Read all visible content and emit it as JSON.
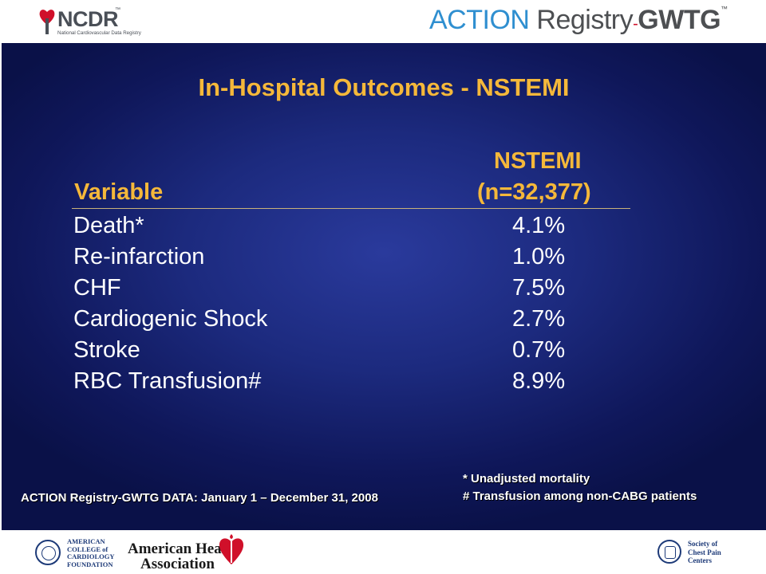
{
  "header": {
    "ncdr_logo": "NCDR",
    "ncdr_tm": "™",
    "ncdr_tagline": "National Cardiovascular Data Registry",
    "action_logo_part1": "ACTION",
    "action_logo_part2": "Registry",
    "action_logo_part3": "GWTG",
    "action_logo_tm": "™"
  },
  "slide": {
    "title": "In-Hospital Outcomes - NSTEMI",
    "table": {
      "col_variable": "Variable",
      "col_nstemi": "NSTEMI",
      "col_n": "(n=32,377)",
      "rows": [
        {
          "variable": "Death*",
          "value": "4.1%"
        },
        {
          "variable": "Re-infarction",
          "value": "1.0%"
        },
        {
          "variable": "CHF",
          "value": "7.5%"
        },
        {
          "variable": "Cardiogenic Shock",
          "value": "2.7%"
        },
        {
          "variable": "Stroke",
          "value": "0.7%"
        },
        {
          "variable": "RBC Transfusion#",
          "value": "8.9%"
        }
      ]
    },
    "footnote_1": "* Unadjusted mortality",
    "footnote_2": "# Transfusion among non-CABG patients",
    "data_source": "ACTION Registry-GWTG DATA: January 1 – December 31, 2008"
  },
  "footer": {
    "acc_lines": [
      "AMERICAN",
      "COLLEGE of",
      "CARDIOLOGY",
      "FOUNDATION"
    ],
    "aha_line1": "American Heart",
    "aha_line2": "Association",
    "scpc_lines": [
      "Society of",
      "Chest Pain",
      "Centers"
    ]
  },
  "colors": {
    "title_gold": "#f5b83a",
    "navy": "#1c2a7e",
    "action_blue": "#2f8fd0",
    "aha_red": "#d0102a"
  }
}
